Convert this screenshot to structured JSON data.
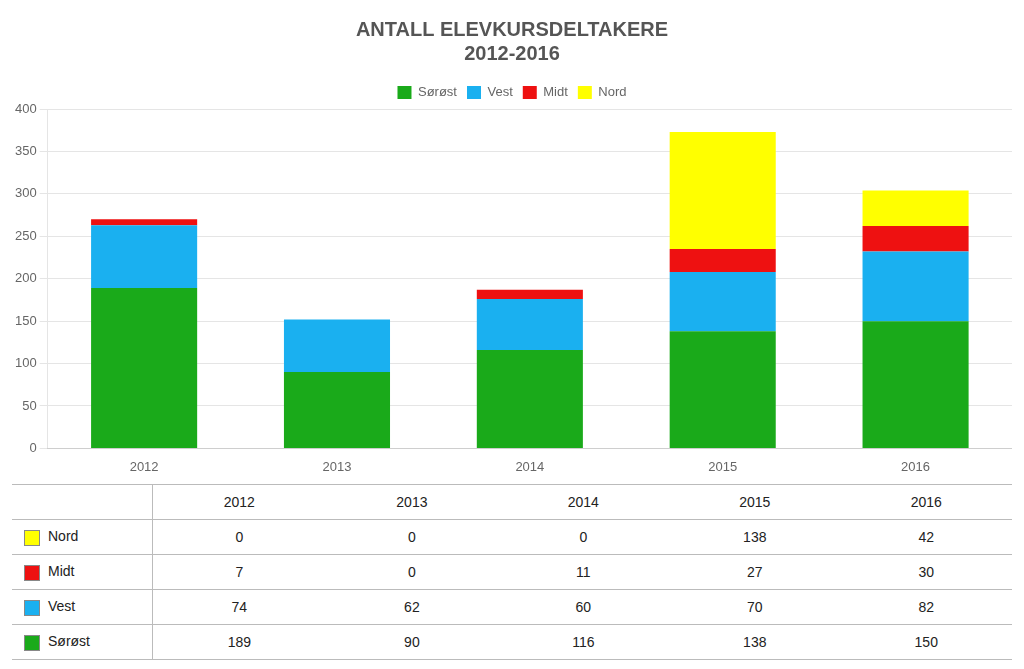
{
  "chart_data": {
    "type": "bar",
    "title": "ANTALL ELEVKURSDELTAKERE\n2012-2016",
    "categories": [
      "2012",
      "2013",
      "2014",
      "2015",
      "2016"
    ],
    "series": [
      {
        "name": "Sørøst",
        "color": "#1aaa1a",
        "values": [
          189,
          90,
          116,
          138,
          150
        ]
      },
      {
        "name": "Vest",
        "color": "#1ab0f0",
        "values": [
          74,
          62,
          60,
          70,
          82
        ]
      },
      {
        "name": "Midt",
        "color": "#ee1111",
        "values": [
          7,
          0,
          11,
          27,
          30
        ]
      },
      {
        "name": "Nord",
        "color": "#ffff00",
        "values": [
          0,
          0,
          0,
          138,
          42
        ]
      }
    ],
    "stacked": true,
    "ylim": [
      0,
      400
    ],
    "yticks": [
      0,
      50,
      100,
      150,
      200,
      250,
      300,
      350,
      400
    ],
    "grid": true,
    "legend": "top"
  }
}
